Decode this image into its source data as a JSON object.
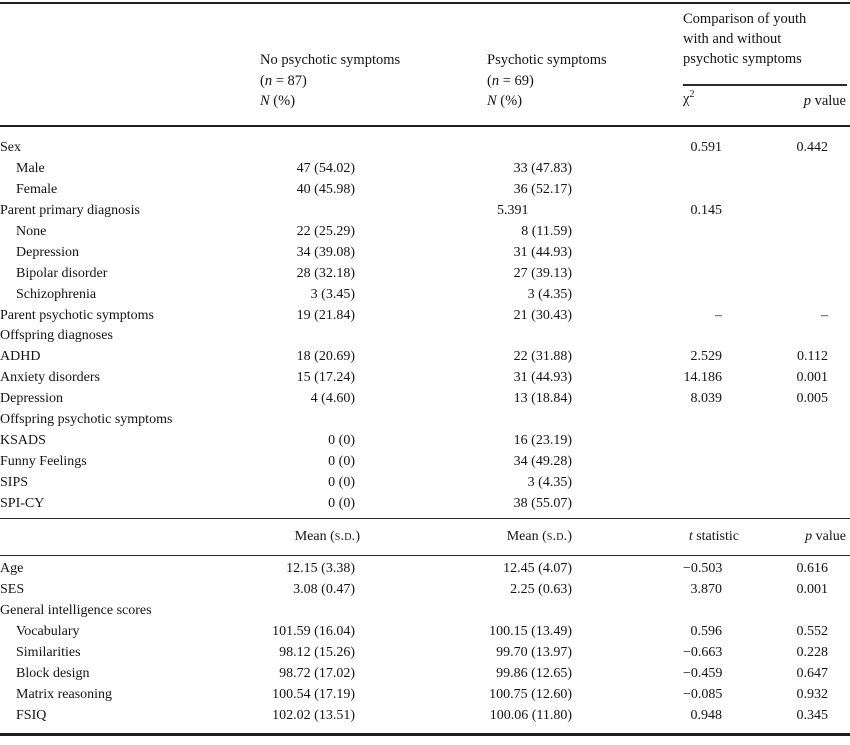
{
  "header": {
    "no_psych": {
      "title": "No psychotic symptoms",
      "n_pre": "(",
      "n_var": "n",
      "n_post": " = 87)",
      "stat_var": "N",
      "stat_post": " (%)"
    },
    "psych": {
      "title": "Psychotic symptoms",
      "n_pre": "(",
      "n_var": "n",
      "n_post": " = 69)",
      "stat_var": "N",
      "stat_post": " (%)"
    },
    "comparison": {
      "line1": "Comparison of youth",
      "line2": "with and without",
      "line3": "psychotic symptoms"
    },
    "chi": {
      "base": "χ",
      "sup": "2"
    },
    "p": {
      "var": "p",
      "post": " value"
    }
  },
  "mid_header": {
    "mean_pre": "Mean (",
    "mean_sc": "s.d.",
    "mean_post": ")",
    "t": {
      "var": "t",
      "post": " statistic"
    },
    "p": {
      "var": "p",
      "post": " value"
    }
  },
  "section1_rows": [
    {
      "label": "Sex",
      "indent": false,
      "v1": "",
      "v2": "",
      "v3": "0.591",
      "v4": "0.442"
    },
    {
      "label": "Male",
      "indent": true,
      "v1": "47 (54.02)",
      "v2": "33 (47.83)",
      "v3": "",
      "v4": ""
    },
    {
      "label": "Female",
      "indent": true,
      "v1": "40 (45.98)",
      "v2": "36 (52.17)",
      "v3": "",
      "v4": ""
    },
    {
      "label": "Parent primary diagnosis",
      "indent": false,
      "v1": "",
      "v2": "5.391",
      "v2_align": "left",
      "v3": "0.145",
      "v4": ""
    },
    {
      "label": "None",
      "indent": true,
      "v1": "22 (25.29)",
      "v2": "8 (11.59)",
      "v3": "",
      "v4": ""
    },
    {
      "label": "Depression",
      "indent": true,
      "v1": "34 (39.08)",
      "v2": "31 (44.93)",
      "v3": "",
      "v4": ""
    },
    {
      "label": "Bipolar disorder",
      "indent": true,
      "v1": "28 (32.18)",
      "v2": "27 (39.13)",
      "v3": "",
      "v4": ""
    },
    {
      "label": "Schizophrenia",
      "indent": true,
      "v1": "3 (3.45)",
      "v2": "3 (4.35)",
      "v3": "",
      "v4": ""
    },
    {
      "label": "Parent psychotic symptoms",
      "indent": false,
      "v1": "19 (21.84)",
      "v2": "21 (30.43)",
      "v3": "–",
      "v4": "–"
    },
    {
      "label": "Offspring diagnoses",
      "indent": false,
      "v1": "",
      "v2": "",
      "v3": "",
      "v4": ""
    },
    {
      "label": "ADHD",
      "indent": false,
      "v1": "18 (20.69)",
      "v2": "22 (31.88)",
      "v3": "2.529",
      "v4": "0.112"
    },
    {
      "label": "Anxiety disorders",
      "indent": false,
      "v1": "15 (17.24)",
      "v2": "31 (44.93)",
      "v3": "14.186",
      "v4": "0.001"
    },
    {
      "label": "Depression",
      "indent": false,
      "v1": "4 (4.60)",
      "v2": "13 (18.84)",
      "v3": "8.039",
      "v4": "0.005"
    },
    {
      "label": "Offspring psychotic symptoms",
      "indent": false,
      "v1": "",
      "v2": "",
      "v3": "",
      "v4": ""
    },
    {
      "label": "KSADS",
      "indent": false,
      "v1": "0 (0)",
      "v2": "16 (23.19)",
      "v3": "",
      "v4": ""
    },
    {
      "label": "Funny Feelings",
      "indent": false,
      "v1": "0 (0)",
      "v2": "34 (49.28)",
      "v3": "",
      "v4": ""
    },
    {
      "label": "SIPS",
      "indent": false,
      "v1": "0 (0)",
      "v2": "3 (4.35)",
      "v3": "",
      "v4": ""
    },
    {
      "label": "SPI-CY",
      "indent": false,
      "v1": "0 (0)",
      "v2": "38 (55.07)",
      "v3": "",
      "v4": ""
    }
  ],
  "section2_rows": [
    {
      "label": "Age",
      "indent": false,
      "v1": "12.15 (3.38)",
      "v2": "12.45 (4.07)",
      "v3": "−0.503",
      "v4": "0.616"
    },
    {
      "label": "SES",
      "indent": false,
      "v1": "3.08 (0.47)",
      "v2": "2.25 (0.63)",
      "v3": "3.870",
      "v4": "0.001"
    },
    {
      "label": "General intelligence scores",
      "indent": false,
      "v1": "",
      "v2": "",
      "v3": "",
      "v4": ""
    },
    {
      "label": "Vocabulary",
      "indent": true,
      "v1": "101.59 (16.04)",
      "v2": "100.15 (13.49)",
      "v3": "0.596",
      "v4": "0.552"
    },
    {
      "label": "Similarities",
      "indent": true,
      "v1": "98.12 (15.26)",
      "v2": "99.70 (13.97)",
      "v3": "−0.663",
      "v4": "0.228"
    },
    {
      "label": "Block design",
      "indent": true,
      "v1": "98.72 (17.02)",
      "v2": "99.86 (12.65)",
      "v3": "−0.459",
      "v4": "0.647"
    },
    {
      "label": "Matrix reasoning",
      "indent": true,
      "v1": "100.54 (17.19)",
      "v2": "100.75 (12.60)",
      "v3": "−0.085",
      "v4": "0.932"
    },
    {
      "label": "FSIQ",
      "indent": true,
      "v1": "102.02 (13.51)",
      "v2": "100.06 (11.80)",
      "v3": "0.948",
      "v4": "0.345"
    }
  ]
}
